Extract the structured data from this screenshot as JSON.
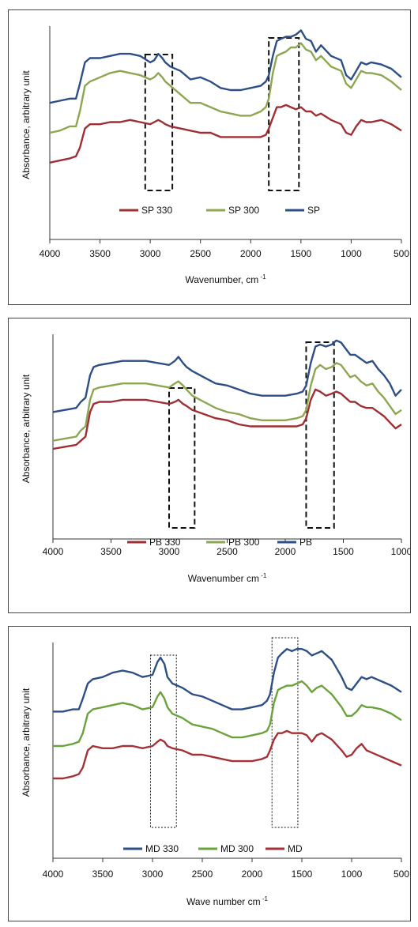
{
  "chart_data": [
    {
      "type": "line",
      "ylabel": "Absorbance, arbitrary unit",
      "xlabel": "Wavenumber, cm",
      "xlabel_sup": "-1",
      "xlim": [
        4000,
        500
      ],
      "xticks": [
        4000,
        3500,
        3000,
        2500,
        2000,
        1500,
        1000,
        500
      ],
      "ylim": [
        0,
        1
      ],
      "grid": false,
      "legend_position": "bottom-center",
      "legend": [
        "SP 330",
        "SP 300",
        "SP"
      ],
      "highlight_ranges": [
        [
          3050,
          2780
        ],
        [
          1820,
          1520
        ]
      ],
      "highlight_style": "dashed-bold",
      "series": [
        {
          "name": "SP",
          "color": "#2d4f86",
          "x": [
            4000,
            3900,
            3800,
            3740,
            3700,
            3650,
            3600,
            3500,
            3400,
            3300,
            3200,
            3100,
            3000,
            2960,
            2920,
            2880,
            2850,
            2800,
            2700,
            2600,
            2500,
            2400,
            2300,
            2200,
            2100,
            2000,
            1900,
            1850,
            1820,
            1780,
            1740,
            1700,
            1650,
            1600,
            1550,
            1500,
            1450,
            1400,
            1350,
            1300,
            1200,
            1100,
            1050,
            1000,
            950,
            900,
            850,
            800,
            700,
            600,
            500
          ],
          "y": [
            0.64,
            0.65,
            0.66,
            0.66,
            0.73,
            0.83,
            0.85,
            0.85,
            0.86,
            0.87,
            0.87,
            0.86,
            0.83,
            0.84,
            0.87,
            0.85,
            0.83,
            0.81,
            0.79,
            0.75,
            0.76,
            0.74,
            0.71,
            0.7,
            0.7,
            0.71,
            0.72,
            0.74,
            0.77,
            0.86,
            0.93,
            0.94,
            0.95,
            0.95,
            0.96,
            0.98,
            0.94,
            0.93,
            0.88,
            0.91,
            0.86,
            0.84,
            0.77,
            0.75,
            0.79,
            0.83,
            0.82,
            0.83,
            0.82,
            0.8,
            0.76
          ]
        },
        {
          "name": "SP 300",
          "color": "#8da651",
          "x": [
            4000,
            3900,
            3800,
            3740,
            3700,
            3650,
            3600,
            3500,
            3400,
            3300,
            3200,
            3100,
            3000,
            2960,
            2920,
            2880,
            2850,
            2800,
            2700,
            2600,
            2500,
            2400,
            2300,
            2200,
            2100,
            2000,
            1900,
            1850,
            1820,
            1780,
            1740,
            1700,
            1650,
            1600,
            1550,
            1500,
            1450,
            1400,
            1350,
            1300,
            1200,
            1100,
            1050,
            1000,
            950,
            900,
            850,
            800,
            700,
            600,
            500
          ],
          "y": [
            0.5,
            0.51,
            0.53,
            0.53,
            0.6,
            0.72,
            0.74,
            0.76,
            0.78,
            0.79,
            0.78,
            0.77,
            0.75,
            0.76,
            0.78,
            0.76,
            0.74,
            0.72,
            0.68,
            0.64,
            0.64,
            0.62,
            0.6,
            0.59,
            0.58,
            0.58,
            0.6,
            0.62,
            0.66,
            0.78,
            0.86,
            0.87,
            0.88,
            0.9,
            0.9,
            0.92,
            0.89,
            0.88,
            0.84,
            0.86,
            0.81,
            0.79,
            0.73,
            0.71,
            0.75,
            0.79,
            0.78,
            0.78,
            0.77,
            0.74,
            0.7
          ]
        },
        {
          "name": "SP 330",
          "color": "#9e2f35",
          "x": [
            4000,
            3900,
            3800,
            3740,
            3700,
            3650,
            3600,
            3500,
            3400,
            3300,
            3200,
            3100,
            3000,
            2960,
            2920,
            2880,
            2850,
            2800,
            2700,
            2600,
            2500,
            2400,
            2300,
            2200,
            2100,
            2000,
            1900,
            1850,
            1820,
            1780,
            1740,
            1700,
            1650,
            1600,
            1550,
            1500,
            1450,
            1400,
            1350,
            1300,
            1200,
            1100,
            1050,
            1000,
            950,
            900,
            850,
            800,
            700,
            600,
            500
          ],
          "y": [
            0.36,
            0.37,
            0.38,
            0.39,
            0.43,
            0.52,
            0.54,
            0.54,
            0.55,
            0.55,
            0.56,
            0.55,
            0.54,
            0.55,
            0.56,
            0.55,
            0.54,
            0.53,
            0.52,
            0.51,
            0.5,
            0.5,
            0.48,
            0.48,
            0.48,
            0.48,
            0.48,
            0.49,
            0.52,
            0.57,
            0.62,
            0.62,
            0.63,
            0.62,
            0.61,
            0.62,
            0.6,
            0.6,
            0.58,
            0.59,
            0.56,
            0.54,
            0.5,
            0.49,
            0.53,
            0.56,
            0.55,
            0.55,
            0.56,
            0.54,
            0.51
          ]
        }
      ]
    },
    {
      "type": "line",
      "ylabel": "Absorbance, arbitrary unit",
      "xlabel": "Wavenumber  cm",
      "xlabel_sup": "-1",
      "xlim": [
        4000,
        1000
      ],
      "xticks": [
        4000,
        3500,
        3000,
        2500,
        2000,
        1500,
        1000
      ],
      "ylim": [
        0,
        1
      ],
      "grid": false,
      "legend_position": "bottom-center",
      "legend": [
        "PB 330",
        "PB 300",
        "PB"
      ],
      "highlight_ranges": [
        [
          3000,
          2780
        ],
        [
          1820,
          1580
        ]
      ],
      "highlight_style": "dashed-bold",
      "series": [
        {
          "name": "PB",
          "color": "#2d4f86",
          "x": [
            4000,
            3900,
            3800,
            3760,
            3720,
            3680,
            3650,
            3600,
            3500,
            3400,
            3300,
            3200,
            3100,
            3000,
            2950,
            2920,
            2880,
            2850,
            2800,
            2700,
            2600,
            2500,
            2400,
            2300,
            2200,
            2100,
            2000,
            1900,
            1850,
            1820,
            1780,
            1740,
            1700,
            1650,
            1600,
            1560,
            1520,
            1480,
            1440,
            1400,
            1350,
            1300,
            1250,
            1200,
            1150,
            1100,
            1050,
            1000
          ],
          "y": [
            0.62,
            0.63,
            0.64,
            0.67,
            0.69,
            0.8,
            0.84,
            0.85,
            0.86,
            0.87,
            0.87,
            0.87,
            0.86,
            0.85,
            0.87,
            0.89,
            0.86,
            0.84,
            0.82,
            0.79,
            0.76,
            0.75,
            0.73,
            0.71,
            0.7,
            0.7,
            0.7,
            0.71,
            0.72,
            0.75,
            0.86,
            0.94,
            0.95,
            0.94,
            0.95,
            0.97,
            0.96,
            0.93,
            0.9,
            0.9,
            0.88,
            0.86,
            0.87,
            0.83,
            0.8,
            0.76,
            0.7,
            0.73
          ]
        },
        {
          "name": "PB 300",
          "color": "#8da651",
          "x": [
            4000,
            3900,
            3800,
            3760,
            3720,
            3680,
            3650,
            3600,
            3500,
            3400,
            3300,
            3200,
            3100,
            3000,
            2950,
            2920,
            2880,
            2850,
            2800,
            2700,
            2600,
            2500,
            2400,
            2300,
            2200,
            2100,
            2000,
            1900,
            1850,
            1820,
            1780,
            1740,
            1700,
            1650,
            1600,
            1560,
            1520,
            1480,
            1440,
            1400,
            1350,
            1300,
            1250,
            1200,
            1150,
            1100,
            1050,
            1000
          ],
          "y": [
            0.48,
            0.49,
            0.5,
            0.53,
            0.55,
            0.68,
            0.73,
            0.74,
            0.75,
            0.76,
            0.76,
            0.76,
            0.75,
            0.74,
            0.76,
            0.77,
            0.75,
            0.73,
            0.7,
            0.67,
            0.64,
            0.62,
            0.61,
            0.59,
            0.58,
            0.58,
            0.58,
            0.59,
            0.6,
            0.63,
            0.75,
            0.83,
            0.85,
            0.83,
            0.84,
            0.86,
            0.85,
            0.82,
            0.79,
            0.8,
            0.77,
            0.75,
            0.76,
            0.72,
            0.69,
            0.65,
            0.61,
            0.63
          ]
        },
        {
          "name": "PB 330",
          "color": "#9e2f35",
          "x": [
            4000,
            3900,
            3800,
            3760,
            3720,
            3680,
            3650,
            3600,
            3500,
            3400,
            3300,
            3200,
            3100,
            3000,
            2950,
            2920,
            2880,
            2850,
            2800,
            2700,
            2600,
            2500,
            2400,
            2300,
            2200,
            2100,
            2000,
            1900,
            1850,
            1820,
            1780,
            1740,
            1700,
            1650,
            1600,
            1560,
            1520,
            1480,
            1440,
            1400,
            1350,
            1300,
            1250,
            1200,
            1150,
            1100,
            1050,
            1000
          ],
          "y": [
            0.44,
            0.45,
            0.46,
            0.48,
            0.5,
            0.62,
            0.66,
            0.67,
            0.67,
            0.68,
            0.68,
            0.68,
            0.67,
            0.66,
            0.67,
            0.68,
            0.66,
            0.65,
            0.63,
            0.61,
            0.59,
            0.58,
            0.56,
            0.55,
            0.55,
            0.55,
            0.55,
            0.55,
            0.56,
            0.59,
            0.68,
            0.73,
            0.72,
            0.7,
            0.71,
            0.72,
            0.71,
            0.69,
            0.67,
            0.67,
            0.65,
            0.64,
            0.64,
            0.62,
            0.6,
            0.57,
            0.54,
            0.56
          ]
        }
      ]
    },
    {
      "type": "line",
      "ylabel": "Absorbance, arbitrary unit",
      "xlabel": "Wave number cm",
      "xlabel_sup": "-1",
      "xlim": [
        4000,
        500
      ],
      "xticks": [
        4000,
        3500,
        3000,
        2500,
        2000,
        1500,
        1000,
        500
      ],
      "ylim": [
        0,
        1
      ],
      "grid": false,
      "legend_position": "bottom-center",
      "legend": [
        "MD 330",
        "MD 300",
        "MD"
      ],
      "highlight_ranges": [
        [
          3020,
          2760
        ],
        [
          1800,
          1540
        ]
      ],
      "highlight_style": "dotted",
      "series": [
        {
          "name": "MD 330",
          "color": "#2d4f86",
          "x": [
            4000,
            3900,
            3800,
            3740,
            3700,
            3650,
            3600,
            3500,
            3400,
            3300,
            3200,
            3100,
            3000,
            2950,
            2920,
            2880,
            2850,
            2800,
            2700,
            2600,
            2500,
            2400,
            2300,
            2200,
            2100,
            2000,
            1900,
            1850,
            1820,
            1780,
            1740,
            1700,
            1650,
            1600,
            1550,
            1500,
            1450,
            1400,
            1350,
            1300,
            1200,
            1100,
            1050,
            1000,
            950,
            900,
            850,
            800,
            700,
            600,
            500
          ],
          "y": [
            0.68,
            0.68,
            0.69,
            0.69,
            0.74,
            0.81,
            0.83,
            0.84,
            0.86,
            0.87,
            0.86,
            0.84,
            0.85,
            0.91,
            0.93,
            0.9,
            0.84,
            0.81,
            0.79,
            0.76,
            0.75,
            0.73,
            0.71,
            0.69,
            0.69,
            0.7,
            0.71,
            0.73,
            0.76,
            0.86,
            0.93,
            0.95,
            0.97,
            0.96,
            0.97,
            0.97,
            0.96,
            0.94,
            0.95,
            0.96,
            0.92,
            0.84,
            0.79,
            0.78,
            0.81,
            0.84,
            0.83,
            0.84,
            0.82,
            0.8,
            0.77
          ]
        },
        {
          "name": "MD 300",
          "color": "#6aa33c",
          "x": [
            4000,
            3900,
            3800,
            3740,
            3700,
            3650,
            3600,
            3500,
            3400,
            3300,
            3200,
            3100,
            3000,
            2950,
            2920,
            2880,
            2850,
            2800,
            2700,
            2600,
            2500,
            2400,
            2300,
            2200,
            2100,
            2000,
            1900,
            1850,
            1820,
            1780,
            1740,
            1700,
            1650,
            1600,
            1550,
            1500,
            1450,
            1400,
            1350,
            1300,
            1200,
            1100,
            1050,
            1000,
            950,
            900,
            850,
            800,
            700,
            600,
            500
          ],
          "y": [
            0.52,
            0.52,
            0.53,
            0.54,
            0.58,
            0.67,
            0.69,
            0.7,
            0.71,
            0.72,
            0.71,
            0.69,
            0.7,
            0.75,
            0.77,
            0.74,
            0.7,
            0.67,
            0.65,
            0.62,
            0.61,
            0.6,
            0.58,
            0.56,
            0.56,
            0.57,
            0.58,
            0.59,
            0.62,
            0.72,
            0.78,
            0.79,
            0.8,
            0.8,
            0.81,
            0.82,
            0.8,
            0.77,
            0.79,
            0.8,
            0.76,
            0.7,
            0.66,
            0.66,
            0.68,
            0.71,
            0.7,
            0.7,
            0.69,
            0.67,
            0.64
          ]
        },
        {
          "name": "MD",
          "color": "#a33236",
          "x": [
            4000,
            3900,
            3800,
            3740,
            3700,
            3650,
            3600,
            3500,
            3400,
            3300,
            3200,
            3100,
            3000,
            2950,
            2920,
            2880,
            2850,
            2800,
            2700,
            2600,
            2500,
            2400,
            2300,
            2200,
            2100,
            2000,
            1900,
            1850,
            1820,
            1780,
            1740,
            1700,
            1650,
            1600,
            1550,
            1500,
            1450,
            1400,
            1350,
            1300,
            1200,
            1100,
            1050,
            1000,
            950,
            900,
            850,
            800,
            700,
            600,
            500
          ],
          "y": [
            0.37,
            0.37,
            0.38,
            0.39,
            0.42,
            0.5,
            0.52,
            0.51,
            0.51,
            0.52,
            0.52,
            0.51,
            0.52,
            0.54,
            0.55,
            0.54,
            0.52,
            0.51,
            0.5,
            0.48,
            0.48,
            0.47,
            0.46,
            0.45,
            0.45,
            0.45,
            0.46,
            0.47,
            0.5,
            0.55,
            0.58,
            0.58,
            0.59,
            0.58,
            0.58,
            0.58,
            0.57,
            0.54,
            0.57,
            0.58,
            0.55,
            0.5,
            0.47,
            0.48,
            0.51,
            0.53,
            0.5,
            0.49,
            0.47,
            0.45,
            0.43
          ]
        }
      ]
    }
  ]
}
